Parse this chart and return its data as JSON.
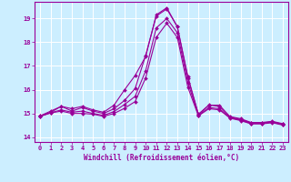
{
  "xlabel": "Windchill (Refroidissement éolien,°C)",
  "background_color": "#cceeff",
  "grid_color": "#ffffff",
  "line_color": "#990099",
  "xlim": [
    -0.5,
    23.5
  ],
  "ylim": [
    13.8,
    19.7
  ],
  "xticks": [
    0,
    1,
    2,
    3,
    4,
    5,
    6,
    7,
    8,
    9,
    10,
    11,
    12,
    13,
    14,
    15,
    16,
    17,
    18,
    19,
    20,
    21,
    22,
    23
  ],
  "yticks": [
    14,
    15,
    16,
    17,
    18,
    19
  ],
  "series1": [
    14.9,
    15.1,
    15.3,
    15.2,
    15.3,
    15.15,
    15.05,
    15.35,
    16.0,
    16.6,
    17.4,
    19.15,
    19.45,
    18.65,
    16.55,
    14.95,
    15.35,
    15.35,
    14.85,
    14.75,
    14.6,
    14.6,
    14.65,
    14.55
  ],
  "series2": [
    14.9,
    15.05,
    15.3,
    15.1,
    15.25,
    15.1,
    15.0,
    15.2,
    15.55,
    16.05,
    17.45,
    19.1,
    19.4,
    18.65,
    16.5,
    14.97,
    15.36,
    15.29,
    14.87,
    14.78,
    14.62,
    14.62,
    14.67,
    14.57
  ],
  "series3": [
    14.88,
    15.03,
    15.15,
    15.05,
    15.1,
    15.0,
    14.92,
    15.08,
    15.38,
    15.72,
    16.8,
    18.6,
    19.0,
    18.4,
    16.3,
    14.92,
    15.25,
    15.2,
    14.82,
    14.72,
    14.58,
    14.58,
    14.63,
    14.53
  ],
  "series4": [
    14.88,
    15.02,
    15.1,
    15.0,
    15.0,
    14.97,
    14.88,
    15.0,
    15.22,
    15.5,
    16.5,
    18.2,
    18.8,
    18.2,
    16.1,
    14.9,
    15.2,
    15.15,
    14.8,
    14.7,
    14.56,
    14.56,
    14.61,
    14.51
  ],
  "marker": "D",
  "markersize": 2,
  "linewidth": 0.8,
  "xlabel_fontsize": 5.5,
  "tick_fontsize": 5,
  "xlabel_fontweight": "bold"
}
